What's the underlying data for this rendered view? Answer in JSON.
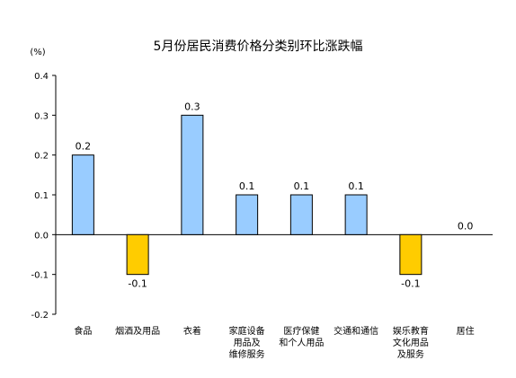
{
  "chart_data": {
    "type": "bar",
    "title": "5月份居民消费价格分类别环比涨跌幅",
    "unit_label": "(%)",
    "ylim": [
      -0.2,
      0.4
    ],
    "yticks": [
      "0.4",
      "0.3",
      "0.2",
      "0.1",
      "0.0",
      "-0.1",
      "-0.2"
    ],
    "grid": false,
    "legend": "none",
    "categories": [
      [
        "食品"
      ],
      [
        "烟酒及用品"
      ],
      [
        "衣着"
      ],
      [
        "家庭设备",
        "用品及",
        "维修服务"
      ],
      [
        "医疗保健",
        "和个人用品"
      ],
      [
        "交通和通信"
      ],
      [
        "娱乐教育",
        "文化用品",
        "及服务"
      ],
      [
        "居住"
      ]
    ],
    "values": [
      0.2,
      -0.1,
      0.3,
      0.1,
      0.1,
      0.1,
      -0.1,
      0.0
    ],
    "data_labels": [
      "0.2",
      "-0.1",
      "0.3",
      "0.1",
      "0.1",
      "0.1",
      "-0.1",
      "0.0"
    ],
    "colors": {
      "positive_fill": "#99ccff",
      "negative_fill": "#ffcc00",
      "bar_stroke": "#000000",
      "axis": "#000000",
      "zero_line": "#000000"
    }
  }
}
